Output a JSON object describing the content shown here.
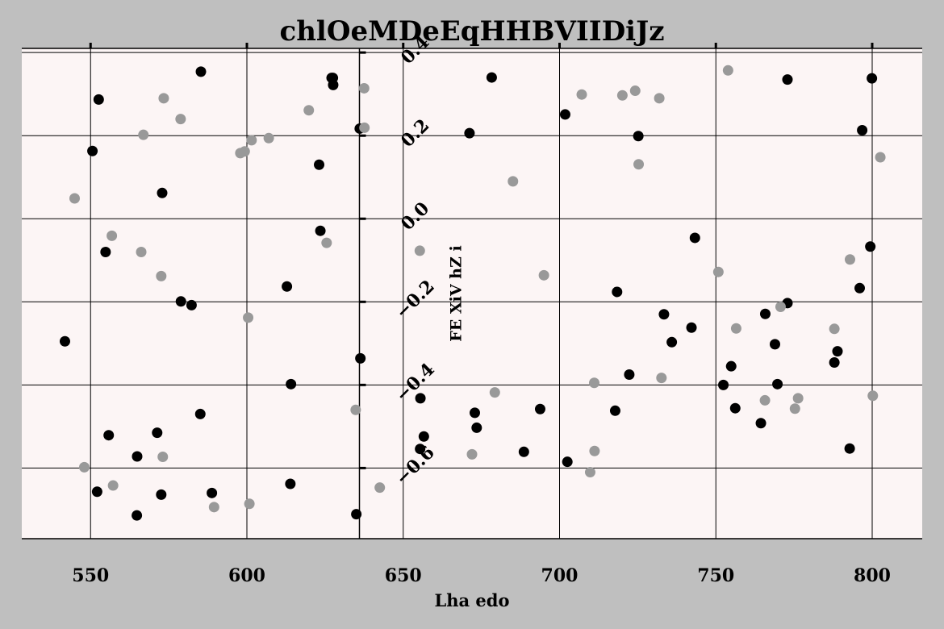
{
  "chart_data": {
    "type": "scatter",
    "title": "chlOeMDeEqHHBVIIDiJz",
    "xlabel": "Lha edo",
    "ylabel": "FE XiV hZ i",
    "xlim": [
      528,
      816
    ],
    "ylim": [
      -0.77,
      0.41
    ],
    "xticks": [
      550,
      600,
      650,
      700,
      750,
      800
    ],
    "yticks": [
      -0.6,
      -0.4,
      -0.2,
      0.0,
      0.2,
      0.4
    ],
    "xtick_labels": [
      "550",
      "600",
      "650",
      "700",
      "750",
      "800"
    ],
    "ytick_labels": [
      "−0.6",
      "−0.4",
      "−0.2",
      "0.0",
      "0.2",
      "0.4"
    ],
    "y_axis_position_x": 636,
    "grid": true,
    "background": "#fcf5f5",
    "figure_background": "#bfbfbf",
    "series": [
      {
        "color": "#000000",
        "points": [
          [
            552.6,
            0.287
          ],
          [
            585.3,
            0.354
          ],
          [
            627.1,
            0.339
          ],
          [
            627.6,
            0.322
          ],
          [
            550.6,
            0.163
          ],
          [
            636.1,
            0.217
          ],
          [
            572.9,
            0.062
          ],
          [
            623.1,
            0.13
          ],
          [
            623.5,
            -0.029
          ],
          [
            554.8,
            -0.08
          ],
          [
            612.8,
            -0.163
          ],
          [
            578.9,
            -0.199
          ],
          [
            582.3,
            -0.208
          ],
          [
            541.8,
            -0.295
          ],
          [
            636.3,
            -0.336
          ],
          [
            614.1,
            -0.398
          ],
          [
            585.1,
            -0.47
          ],
          [
            555.8,
            -0.521
          ],
          [
            571.3,
            -0.515
          ],
          [
            564.9,
            -0.572
          ],
          [
            552.1,
            -0.657
          ],
          [
            572.6,
            -0.664
          ],
          [
            588.8,
            -0.66
          ],
          [
            613.9,
            -0.638
          ],
          [
            564.8,
            -0.714
          ],
          [
            635.0,
            -0.711
          ],
          [
            627.5,
            0.339
          ],
          [
            678.3,
            0.34
          ],
          [
            671.2,
            0.206
          ],
          [
            701.8,
            0.251
          ],
          [
            725.2,
            0.199
          ],
          [
            743.3,
            -0.046
          ],
          [
            718.4,
            -0.176
          ],
          [
            733.4,
            -0.23
          ],
          [
            742.2,
            -0.262
          ],
          [
            735.9,
            -0.297
          ],
          [
            722.3,
            -0.375
          ],
          [
            717.8,
            -0.462
          ],
          [
            693.8,
            -0.458
          ],
          [
            688.6,
            -0.561
          ],
          [
            702.5,
            -0.585
          ],
          [
            672.9,
            -0.467
          ],
          [
            673.5,
            -0.503
          ],
          [
            656.6,
            -0.524
          ],
          [
            655.4,
            -0.554
          ],
          [
            655.5,
            -0.432
          ],
          [
            754.9,
            -0.355
          ],
          [
            752.4,
            -0.4
          ],
          [
            756.2,
            -0.456
          ],
          [
            764.4,
            -0.492
          ],
          [
            765.8,
            -0.229
          ],
          [
            772.9,
            -0.203
          ],
          [
            768.9,
            -0.302
          ],
          [
            769.7,
            -0.398
          ],
          [
            788.9,
            -0.319
          ],
          [
            787.9,
            -0.346
          ],
          [
            796.0,
            -0.167
          ],
          [
            799.4,
            -0.067
          ],
          [
            796.8,
            0.213
          ],
          [
            772.9,
            0.335
          ],
          [
            799.9,
            0.338
          ],
          [
            792.8,
            -0.553
          ]
        ]
      },
      {
        "color": "#999999",
        "points": [
          [
            573.4,
            0.29
          ],
          [
            566.9,
            0.202
          ],
          [
            578.8,
            0.24
          ],
          [
            544.9,
            0.049
          ],
          [
            556.8,
            -0.041
          ],
          [
            566.2,
            -0.08
          ],
          [
            572.6,
            -0.138
          ],
          [
            619.8,
            0.261
          ],
          [
            607.0,
            0.194
          ],
          [
            601.5,
            0.189
          ],
          [
            597.9,
            0.158
          ],
          [
            599.3,
            0.162
          ],
          [
            625.5,
            -0.058
          ],
          [
            600.4,
            -0.238
          ],
          [
            637.5,
            0.314
          ],
          [
            637.6,
            0.219
          ],
          [
            634.8,
            -0.46
          ],
          [
            548.0,
            -0.598
          ],
          [
            557.2,
            -0.642
          ],
          [
            573.1,
            -0.573
          ],
          [
            589.5,
            -0.694
          ],
          [
            600.8,
            -0.686
          ],
          [
            642.5,
            -0.647
          ],
          [
            655.3,
            -0.077
          ],
          [
            685.1,
            0.09
          ],
          [
            695.0,
            -0.136
          ],
          [
            707.1,
            0.299
          ],
          [
            720.1,
            0.297
          ],
          [
            724.2,
            0.308
          ],
          [
            731.9,
            0.29
          ],
          [
            725.3,
            0.131
          ],
          [
            679.3,
            -0.418
          ],
          [
            711.1,
            -0.395
          ],
          [
            711.2,
            -0.559
          ],
          [
            672.0,
            -0.567
          ],
          [
            709.8,
            -0.61
          ],
          [
            732.6,
            -0.383
          ],
          [
            750.8,
            -0.128
          ],
          [
            756.5,
            -0.264
          ],
          [
            753.9,
            0.357
          ],
          [
            765.7,
            -0.437
          ],
          [
            770.7,
            -0.212
          ],
          [
            775.3,
            -0.457
          ],
          [
            776.3,
            -0.432
          ],
          [
            787.9,
            -0.265
          ],
          [
            792.9,
            -0.098
          ],
          [
            800.2,
            -0.426
          ],
          [
            802.6,
            0.148
          ]
        ]
      }
    ]
  }
}
